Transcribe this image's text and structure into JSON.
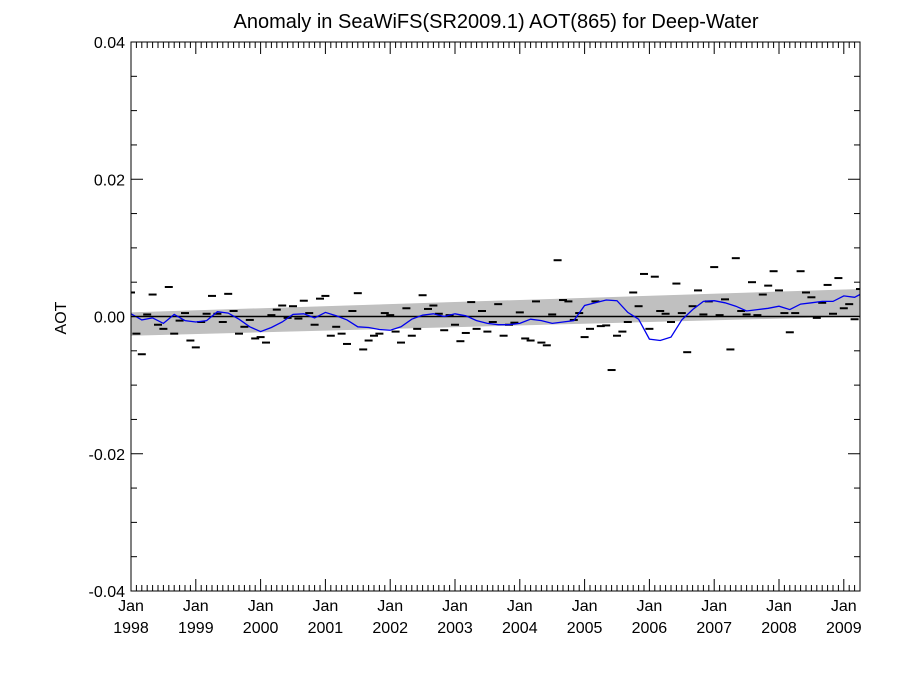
{
  "chart_data": {
    "type": "line",
    "title": "Anomaly in SeaWiFS(SR2009.1) AOT(865) for Deep-Water",
    "xlabel": "",
    "ylabel": "AOT",
    "xlim": [
      "1998-01",
      "2009-04"
    ],
    "ylim": [
      -0.04,
      0.04
    ],
    "y_ticks": [
      "0.04",
      "0.02",
      "0.00",
      "-0.02",
      "-0.04"
    ],
    "y_tick_values": [
      0.04,
      0.02,
      0.0,
      -0.02,
      -0.04
    ],
    "x_ticks": [
      {
        "month": "Jan",
        "year": "1998",
        "date": "1998-01"
      },
      {
        "month": "Jan",
        "year": "1999",
        "date": "1999-01"
      },
      {
        "month": "Jan",
        "year": "2000",
        "date": "2000-01"
      },
      {
        "month": "Jan",
        "year": "2001",
        "date": "2001-01"
      },
      {
        "month": "Jan",
        "year": "2002",
        "date": "2002-01"
      },
      {
        "month": "Jan",
        "year": "2003",
        "date": "2003-01"
      },
      {
        "month": "Jan",
        "year": "2004",
        "date": "2004-01"
      },
      {
        "month": "Jan",
        "year": "2005",
        "date": "2005-01"
      },
      {
        "month": "Jan",
        "year": "2006",
        "date": "2006-01"
      },
      {
        "month": "Jan",
        "year": "2007",
        "date": "2007-01"
      },
      {
        "month": "Jan",
        "year": "2008",
        "date": "2008-01"
      },
      {
        "month": "Jan",
        "year": "2009",
        "date": "2009-01"
      }
    ],
    "grid": false,
    "legend": "none",
    "colors": {
      "smoothed_line": "#0000ee",
      "band": "#c0c0c0",
      "markers": "#000000",
      "zero_line": "#000000"
    },
    "series": [
      {
        "kind": "points",
        "x": [
          "1998-01",
          "1998-02",
          "1998-03",
          "1998-04",
          "1998-05",
          "1998-06",
          "1998-07",
          "1998-08",
          "1998-09",
          "1998-10",
          "1998-11",
          "1998-12",
          "1999-01",
          "1999-02",
          "1999-03",
          "1999-04",
          "1999-05",
          "1999-06",
          "1999-07",
          "1999-08",
          "1999-09",
          "1999-10",
          "1999-11",
          "1999-12",
          "2000-01",
          "2000-02",
          "2000-03",
          "2000-04",
          "2000-05",
          "2000-06",
          "2000-07",
          "2000-08",
          "2000-09",
          "2000-10",
          "2000-11",
          "2000-12",
          "2001-01",
          "2001-02",
          "2001-03",
          "2001-04",
          "2001-05",
          "2001-06",
          "2001-07",
          "2001-08",
          "2001-09",
          "2001-10",
          "2001-11",
          "2001-12",
          "2002-01",
          "2002-02",
          "2002-03",
          "2002-04",
          "2002-05",
          "2002-06",
          "2002-07",
          "2002-08",
          "2002-09",
          "2002-10",
          "2002-11",
          "2002-12",
          "2003-01",
          "2003-02",
          "2003-03",
          "2003-04",
          "2003-05",
          "2003-06",
          "2003-07",
          "2003-08",
          "2003-09",
          "2003-10",
          "2003-11",
          "2003-12",
          "2004-01",
          "2004-02",
          "2004-03",
          "2004-04",
          "2004-05",
          "2004-06",
          "2004-07",
          "2004-08",
          "2004-09",
          "2004-10",
          "2004-11",
          "2004-12",
          "2005-01",
          "2005-02",
          "2005-03",
          "2005-04",
          "2005-05",
          "2005-06",
          "2005-07",
          "2005-08",
          "2005-09",
          "2005-10",
          "2005-11",
          "2005-12",
          "2006-01",
          "2006-02",
          "2006-03",
          "2006-04",
          "2006-05",
          "2006-06",
          "2006-07",
          "2006-08",
          "2006-09",
          "2006-10",
          "2006-11",
          "2006-12",
          "2007-01",
          "2007-02",
          "2007-03",
          "2007-04",
          "2007-05",
          "2007-06",
          "2007-07",
          "2007-08",
          "2007-09",
          "2007-10",
          "2007-11",
          "2007-12",
          "2008-01",
          "2008-02",
          "2008-03",
          "2008-04",
          "2008-05",
          "2008-06",
          "2008-07",
          "2008-08",
          "2008-09",
          "2008-10",
          "2008-11",
          "2008-12",
          "2009-01",
          "2009-02",
          "2009-03",
          "2009-04"
        ],
        "y": [
          0.0035,
          -0.0025,
          -0.0055,
          0.0003,
          0.0032,
          -0.0012,
          -0.0018,
          0.0043,
          -0.0025,
          -0.0006,
          0.0005,
          -0.0035,
          -0.0045,
          -0.0008,
          0.0004,
          0.003,
          0.0004,
          -0.0008,
          0.0033,
          0.0008,
          -0.0025,
          -0.0015,
          -0.0005,
          -0.0032,
          -0.003,
          -0.0038,
          0.0002,
          0.001,
          0.0016,
          -0.0002,
          0.0015,
          -0.0003,
          0.0023,
          0.0005,
          -0.0012,
          0.0026,
          0.003,
          -0.0028,
          -0.0015,
          -0.0025,
          -0.004,
          0.0008,
          0.0034,
          -0.0048,
          -0.0035,
          -0.0028,
          -0.0025,
          0.0005,
          0.0002,
          -0.0022,
          -0.0038,
          0.0012,
          -0.0028,
          -0.0018,
          0.0031,
          0.0011,
          0.0016,
          0.0004,
          -0.002,
          0.0002,
          -0.0012,
          -0.0036,
          -0.0024,
          0.0021,
          -0.0018,
          0.0008,
          -0.0022,
          -0.0008,
          0.0018,
          -0.0028,
          -0.0012,
          -0.0009,
          0.0006,
          -0.0032,
          -0.0035,
          0.0022,
          -0.0038,
          -0.0042,
          0.0003,
          0.0082,
          0.0024,
          0.0022,
          -0.0005,
          0.0005,
          -0.003,
          -0.0018,
          0.0022,
          -0.0014,
          -0.0013,
          -0.0078,
          -0.0028,
          -0.0022,
          -0.0008,
          0.0035,
          0.0015,
          0.0062,
          -0.0018,
          0.0058,
          0.0008,
          0.0004,
          -0.0008,
          0.0048,
          0.0005,
          -0.0052,
          0.0015,
          0.0038,
          0.0003,
          0.0022,
          0.0072,
          0.0002,
          0.0025,
          -0.0048,
          0.0085,
          0.0008,
          0.0003,
          0.005,
          0.0002,
          0.0032,
          0.0045,
          0.0066,
          0.0038,
          0.0005,
          -0.0023,
          0.0005,
          0.0066,
          0.0035,
          0.0028,
          -0.0002,
          0.002,
          0.0046,
          0.0004,
          0.0056,
          0.0012,
          0.0018,
          -0.0004,
          0.004
        ]
      },
      {
        "kind": "smoothed",
        "x": [
          "1998-01",
          "1998-03",
          "1998-05",
          "1998-07",
          "1998-09",
          "1998-11",
          "1999-01",
          "1999-03",
          "1999-05",
          "1999-07",
          "1999-09",
          "1999-11",
          "2000-01",
          "2000-03",
          "2000-05",
          "2000-07",
          "2000-09",
          "2000-11",
          "2001-01",
          "2001-03",
          "2001-05",
          "2001-07",
          "2001-09",
          "2001-11",
          "2002-01",
          "2002-03",
          "2002-05",
          "2002-07",
          "2002-09",
          "2002-11",
          "2003-01",
          "2003-03",
          "2003-05",
          "2003-07",
          "2003-09",
          "2003-11",
          "2004-01",
          "2004-03",
          "2004-05",
          "2004-07",
          "2004-09",
          "2004-11",
          "2005-01",
          "2005-03",
          "2005-05",
          "2005-07",
          "2005-09",
          "2005-11",
          "2006-01",
          "2006-03",
          "2006-05",
          "2006-07",
          "2006-09",
          "2006-11",
          "2007-01",
          "2007-03",
          "2007-05",
          "2007-07",
          "2007-09",
          "2007-11",
          "2008-01",
          "2008-03",
          "2008-05",
          "2008-07",
          "2008-09",
          "2008-11",
          "2009-01",
          "2009-03",
          "2009-04"
        ],
        "y": [
          0.0004,
          -0.0005,
          -0.0002,
          -0.001,
          0.0003,
          -0.0006,
          -0.0008,
          -0.0006,
          0.0007,
          0.0005,
          -0.0004,
          -0.0015,
          -0.0022,
          -0.0016,
          -0.0008,
          0.0003,
          0.0004,
          -0.0002,
          0.0006,
          0.0001,
          -0.0005,
          -0.0015,
          -0.0016,
          -0.0019,
          -0.002,
          -0.0015,
          -0.0004,
          0.0002,
          0.0004,
          0.0,
          0.0004,
          0.0001,
          -0.0006,
          -0.001,
          -0.0012,
          -0.0012,
          -0.001,
          -0.0004,
          -0.0006,
          -0.001,
          -0.0008,
          -0.0006,
          0.0016,
          0.002,
          0.0024,
          0.0023,
          0.0006,
          -0.0004,
          -0.0033,
          -0.0035,
          -0.003,
          -0.0005,
          0.001,
          0.0022,
          0.0023,
          0.002,
          0.0015,
          0.0008,
          0.001,
          0.0012,
          0.0015,
          0.001,
          0.0018,
          0.002,
          0.0022,
          0.0022,
          0.003,
          0.0028,
          0.0032
        ]
      }
    ],
    "band": {
      "x": [
        "1998-01",
        "2009-04"
      ],
      "lower": [
        -0.0028,
        0.0
      ],
      "upper": [
        0.0006,
        0.004
      ]
    },
    "reference_line_y": 0.0
  }
}
